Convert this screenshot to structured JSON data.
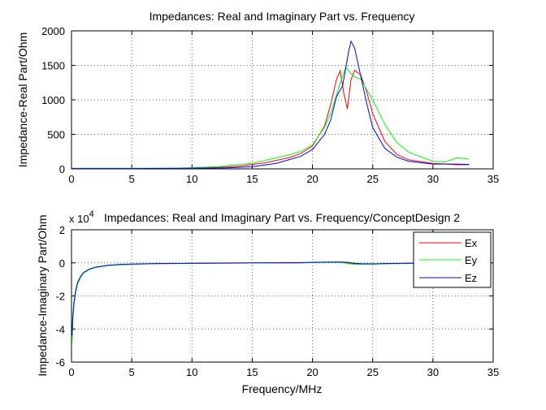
{
  "colors": {
    "Ex": "#ff0000",
    "Ey": "#00ff00",
    "Ez": "#0000ff"
  },
  "chart_data": [
    {
      "type": "line",
      "title": "Impedances: Real and Imaginary Part vs. Frequency",
      "xlabel": "",
      "ylabel": "Impedance-Real Part/Ohm",
      "xlim": [
        0,
        35
      ],
      "ylim": [
        0,
        2000
      ],
      "xticks": [
        "0",
        "5",
        "10",
        "15",
        "20",
        "25",
        "30",
        "35"
      ],
      "yticks": [
        "0",
        "500",
        "1000",
        "1500",
        "2000"
      ],
      "grid": true,
      "series": [
        {
          "name": "Ex",
          "x": [
            0,
            5,
            10,
            12,
            14,
            16,
            18,
            19,
            20,
            21,
            21.5,
            22,
            22.3,
            22.6,
            22.9,
            23.2,
            23.5,
            24,
            24.5,
            25,
            26,
            27,
            28,
            30,
            32,
            33
          ],
          "y": [
            5,
            5,
            10,
            18,
            40,
            85,
            160,
            220,
            330,
            620,
            920,
            1300,
            1420,
            1100,
            870,
            1290,
            1430,
            1360,
            1120,
            800,
            400,
            210,
            130,
            80,
            60,
            60
          ]
        },
        {
          "name": "Ey",
          "x": [
            0,
            5,
            9,
            12,
            15,
            16,
            17,
            18,
            19,
            20,
            21,
            21.5,
            22,
            22.5,
            22.8,
            23,
            23.5,
            24,
            25,
            26,
            27,
            28,
            30,
            31,
            32,
            33
          ],
          "y": [
            10,
            10,
            12,
            30,
            80,
            120,
            160,
            200,
            250,
            350,
            600,
            800,
            1070,
            1350,
            1480,
            1420,
            1330,
            1300,
            1000,
            650,
            380,
            240,
            110,
            100,
            160,
            140
          ]
        },
        {
          "name": "Ez",
          "x": [
            0,
            5,
            10,
            13,
            15,
            17,
            19,
            20,
            21,
            21.5,
            22,
            22.5,
            23,
            23.2,
            23.5,
            24,
            24.5,
            25,
            26,
            27,
            28,
            30,
            32,
            33
          ],
          "y": [
            5,
            5,
            8,
            15,
            30,
            80,
            180,
            280,
            500,
            700,
            1050,
            1200,
            1700,
            1850,
            1750,
            1350,
            950,
            600,
            300,
            170,
            110,
            70,
            70,
            65
          ]
        }
      ]
    },
    {
      "type": "line",
      "title": "Impedances: Real and Imaginary Part vs. Frequency/ConceptDesign 2",
      "xlabel": "Frequency/MHz",
      "ylabel": "Impedance-Imaginary Part/Ohm",
      "y_exponent_base": "x 10",
      "y_exponent": "4",
      "xlim": [
        0,
        35
      ],
      "ylim": [
        -6,
        2
      ],
      "xticks": [
        "0",
        "5",
        "10",
        "15",
        "20",
        "25",
        "30",
        "35"
      ],
      "yticks": [
        "-6",
        "-4",
        "-2",
        "0",
        "2"
      ],
      "grid": true,
      "legend": {
        "placement": "top-right",
        "entries": [
          "Ex",
          "Ey",
          "Ez"
        ]
      },
      "series": [
        {
          "name": "Ex",
          "x": [
            0.05,
            0.1,
            0.2,
            0.35,
            0.5,
            0.75,
            1,
            1.5,
            2,
            3,
            4,
            5,
            7,
            10,
            15,
            19,
            20,
            21,
            22,
            22.5,
            23,
            23.5,
            24,
            25,
            26,
            27,
            28,
            29,
            30,
            31,
            32,
            33
          ],
          "y": [
            -4.6,
            -3.5,
            -2.5,
            -1.7,
            -1.25,
            -0.85,
            -0.6,
            -0.38,
            -0.27,
            -0.16,
            -0.11,
            -0.08,
            -0.05,
            -0.03,
            -0.01,
            0.0,
            0.02,
            0.03,
            0.04,
            0.03,
            -0.02,
            -0.06,
            -0.08,
            -0.07,
            -0.05,
            -0.04,
            -0.02,
            -0.01,
            -0.01,
            0.0,
            0.0,
            0.0
          ]
        },
        {
          "name": "Ey",
          "x": [
            0.05,
            0.1,
            0.2,
            0.35,
            0.5,
            0.75,
            1,
            1.5,
            2,
            3,
            4,
            5,
            7,
            10,
            15,
            19,
            20,
            21,
            22,
            22.5,
            23,
            23.5,
            24,
            25,
            26,
            27,
            28,
            29,
            30,
            31,
            32,
            33
          ],
          "y": [
            -4.8,
            -3.6,
            -2.6,
            -1.8,
            -1.3,
            -0.9,
            -0.62,
            -0.4,
            -0.28,
            -0.17,
            -0.12,
            -0.09,
            -0.05,
            -0.03,
            -0.01,
            0.0,
            0.01,
            0.02,
            0.03,
            0.0,
            -0.05,
            -0.09,
            -0.1,
            -0.08,
            -0.06,
            -0.05,
            -0.03,
            -0.02,
            -0.01,
            0.0,
            0.0,
            0.0
          ]
        },
        {
          "name": "Ez",
          "x": [
            0.05,
            0.1,
            0.2,
            0.35,
            0.5,
            0.75,
            1,
            1.5,
            2,
            3,
            4,
            5,
            7,
            10,
            15,
            19,
            20,
            21,
            22,
            22.5,
            23,
            23.5,
            24,
            25,
            26,
            27,
            28,
            29,
            30,
            31,
            32,
            33
          ],
          "y": [
            -4.4,
            -3.3,
            -2.4,
            -1.65,
            -1.2,
            -0.82,
            -0.58,
            -0.37,
            -0.26,
            -0.15,
            -0.1,
            -0.07,
            -0.04,
            -0.02,
            0.0,
            0.01,
            0.03,
            0.04,
            0.05,
            0.05,
            0.02,
            -0.02,
            -0.05,
            -0.06,
            -0.04,
            -0.03,
            -0.02,
            -0.01,
            0.0,
            0.0,
            0.0,
            0.0
          ]
        }
      ]
    }
  ]
}
